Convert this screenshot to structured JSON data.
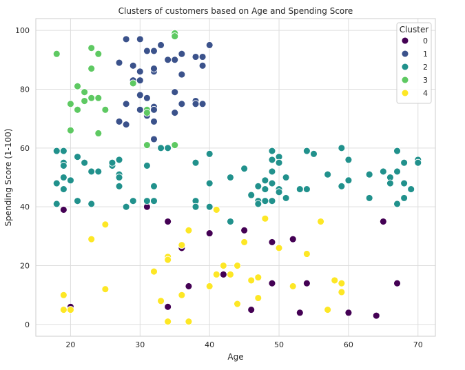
{
  "chart_data": {
    "type": "scatter",
    "title": "Clusters of customers based on Age and Spending Score",
    "xlabel": "Age",
    "ylabel": "Spending Score (1-100)",
    "xlim": [
      15,
      72.5
    ],
    "ylim": [
      -4,
      104
    ],
    "xticks": [
      20,
      30,
      40,
      50,
      60,
      70
    ],
    "yticks": [
      0,
      20,
      40,
      60,
      80,
      100
    ],
    "grid": true,
    "legend": {
      "title": "Cluster",
      "placement": "top-right"
    },
    "series": [
      {
        "name": "0",
        "color": "#440154",
        "points": [
          [
            19,
            39
          ],
          [
            20,
            6
          ],
          [
            31,
            40
          ],
          [
            34,
            35
          ],
          [
            34,
            6
          ],
          [
            36,
            26
          ],
          [
            37,
            13
          ],
          [
            40,
            31
          ],
          [
            42,
            17
          ],
          [
            45,
            32
          ],
          [
            46,
            5
          ],
          [
            49,
            28
          ],
          [
            49,
            14
          ],
          [
            52,
            29
          ],
          [
            53,
            4
          ],
          [
            54,
            14
          ],
          [
            60,
            4
          ],
          [
            64,
            3
          ],
          [
            65,
            35
          ],
          [
            67,
            14
          ]
        ]
      },
      {
        "name": "1",
        "color": "#3b528b",
        "points": [
          [
            27,
            89
          ],
          [
            28,
            97
          ],
          [
            28,
            75
          ],
          [
            29,
            88
          ],
          [
            29,
            83
          ],
          [
            30,
            97
          ],
          [
            30,
            86
          ],
          [
            30,
            78
          ],
          [
            30,
            83
          ],
          [
            31,
            93
          ],
          [
            31,
            73
          ],
          [
            31,
            71
          ],
          [
            31,
            77
          ],
          [
            32,
            93
          ],
          [
            32,
            86
          ],
          [
            32,
            87
          ],
          [
            32,
            74
          ],
          [
            32,
            69
          ],
          [
            33,
            95
          ],
          [
            34,
            90
          ],
          [
            35,
            90
          ],
          [
            35,
            79
          ],
          [
            35,
            72
          ],
          [
            36,
            92
          ],
          [
            36,
            75
          ],
          [
            36,
            85
          ],
          [
            38,
            91
          ],
          [
            38,
            76
          ],
          [
            38,
            75
          ],
          [
            39,
            91
          ],
          [
            39,
            88
          ],
          [
            39,
            75
          ],
          [
            40,
            95
          ],
          [
            27,
            69
          ],
          [
            28,
            68
          ],
          [
            32,
            73
          ],
          [
            32,
            63
          ],
          [
            30,
            73
          ]
        ]
      },
      {
        "name": "2",
        "color": "#21918c",
        "points": [
          [
            18,
            59
          ],
          [
            18,
            48
          ],
          [
            18,
            41
          ],
          [
            19,
            59
          ],
          [
            19,
            55
          ],
          [
            19,
            54
          ],
          [
            19,
            50
          ],
          [
            19,
            46
          ],
          [
            20,
            49
          ],
          [
            21,
            57
          ],
          [
            21,
            42
          ],
          [
            22,
            55
          ],
          [
            23,
            52
          ],
          [
            23,
            41
          ],
          [
            24,
            52
          ],
          [
            26,
            54
          ],
          [
            26,
            55
          ],
          [
            27,
            51
          ],
          [
            27,
            56
          ],
          [
            27,
            50
          ],
          [
            27,
            47
          ],
          [
            28,
            40
          ],
          [
            29,
            42
          ],
          [
            31,
            54
          ],
          [
            31,
            42
          ],
          [
            32,
            47
          ],
          [
            32,
            42
          ],
          [
            33,
            60
          ],
          [
            34,
            60
          ],
          [
            38,
            55
          ],
          [
            38,
            42
          ],
          [
            38,
            40
          ],
          [
            40,
            58
          ],
          [
            40,
            48
          ],
          [
            40,
            40
          ],
          [
            43,
            50
          ],
          [
            43,
            35
          ],
          [
            45,
            53
          ],
          [
            46,
            44
          ],
          [
            47,
            47
          ],
          [
            47,
            42
          ],
          [
            47,
            41
          ],
          [
            48,
            49
          ],
          [
            48,
            46
          ],
          [
            48,
            42
          ],
          [
            49,
            59
          ],
          [
            49,
            56
          ],
          [
            49,
            52
          ],
          [
            49,
            48
          ],
          [
            49,
            42
          ],
          [
            50,
            57
          ],
          [
            50,
            55
          ],
          [
            50,
            46
          ],
          [
            50,
            45
          ],
          [
            51,
            50
          ],
          [
            51,
            43
          ],
          [
            53,
            46
          ],
          [
            54,
            59
          ],
          [
            54,
            46
          ],
          [
            55,
            58
          ],
          [
            57,
            51
          ],
          [
            59,
            60
          ],
          [
            59,
            47
          ],
          [
            60,
            56
          ],
          [
            60,
            49
          ],
          [
            63,
            51
          ],
          [
            63,
            43
          ],
          [
            65,
            52
          ],
          [
            66,
            50
          ],
          [
            66,
            48
          ],
          [
            67,
            59
          ],
          [
            67,
            52
          ],
          [
            67,
            41
          ],
          [
            68,
            55
          ],
          [
            68,
            48
          ],
          [
            68,
            43
          ],
          [
            69,
            46
          ],
          [
            70,
            56
          ],
          [
            70,
            55
          ]
        ]
      },
      {
        "name": "3",
        "color": "#5ec962",
        "points": [
          [
            18,
            92
          ],
          [
            20,
            75
          ],
          [
            20,
            66
          ],
          [
            21,
            81
          ],
          [
            21,
            73
          ],
          [
            22,
            79
          ],
          [
            22,
            76
          ],
          [
            23,
            94
          ],
          [
            23,
            87
          ],
          [
            23,
            77
          ],
          [
            24,
            92
          ],
          [
            24,
            77
          ],
          [
            24,
            65
          ],
          [
            25,
            73
          ],
          [
            29,
            82
          ],
          [
            31,
            73
          ],
          [
            31,
            72
          ],
          [
            31,
            61
          ],
          [
            35,
            99
          ],
          [
            35,
            98
          ],
          [
            35,
            61
          ]
        ]
      },
      {
        "name": "4",
        "color": "#fde725",
        "points": [
          [
            19,
            10
          ],
          [
            19,
            5
          ],
          [
            20,
            5
          ],
          [
            23,
            29
          ],
          [
            25,
            34
          ],
          [
            25,
            12
          ],
          [
            32,
            18
          ],
          [
            33,
            8
          ],
          [
            34,
            23
          ],
          [
            34,
            22
          ],
          [
            34,
            1
          ],
          [
            36,
            27
          ],
          [
            36,
            10
          ],
          [
            37,
            32
          ],
          [
            37,
            1
          ],
          [
            40,
            13
          ],
          [
            41,
            39
          ],
          [
            41,
            17
          ],
          [
            42,
            20
          ],
          [
            43,
            17
          ],
          [
            44,
            20
          ],
          [
            44,
            7
          ],
          [
            45,
            28
          ],
          [
            46,
            15
          ],
          [
            47,
            16
          ],
          [
            47,
            9
          ],
          [
            48,
            36
          ],
          [
            50,
            26
          ],
          [
            52,
            13
          ],
          [
            54,
            24
          ],
          [
            56,
            35
          ],
          [
            57,
            5
          ],
          [
            58,
            15
          ],
          [
            59,
            14
          ],
          [
            59,
            11
          ]
        ]
      }
    ]
  }
}
